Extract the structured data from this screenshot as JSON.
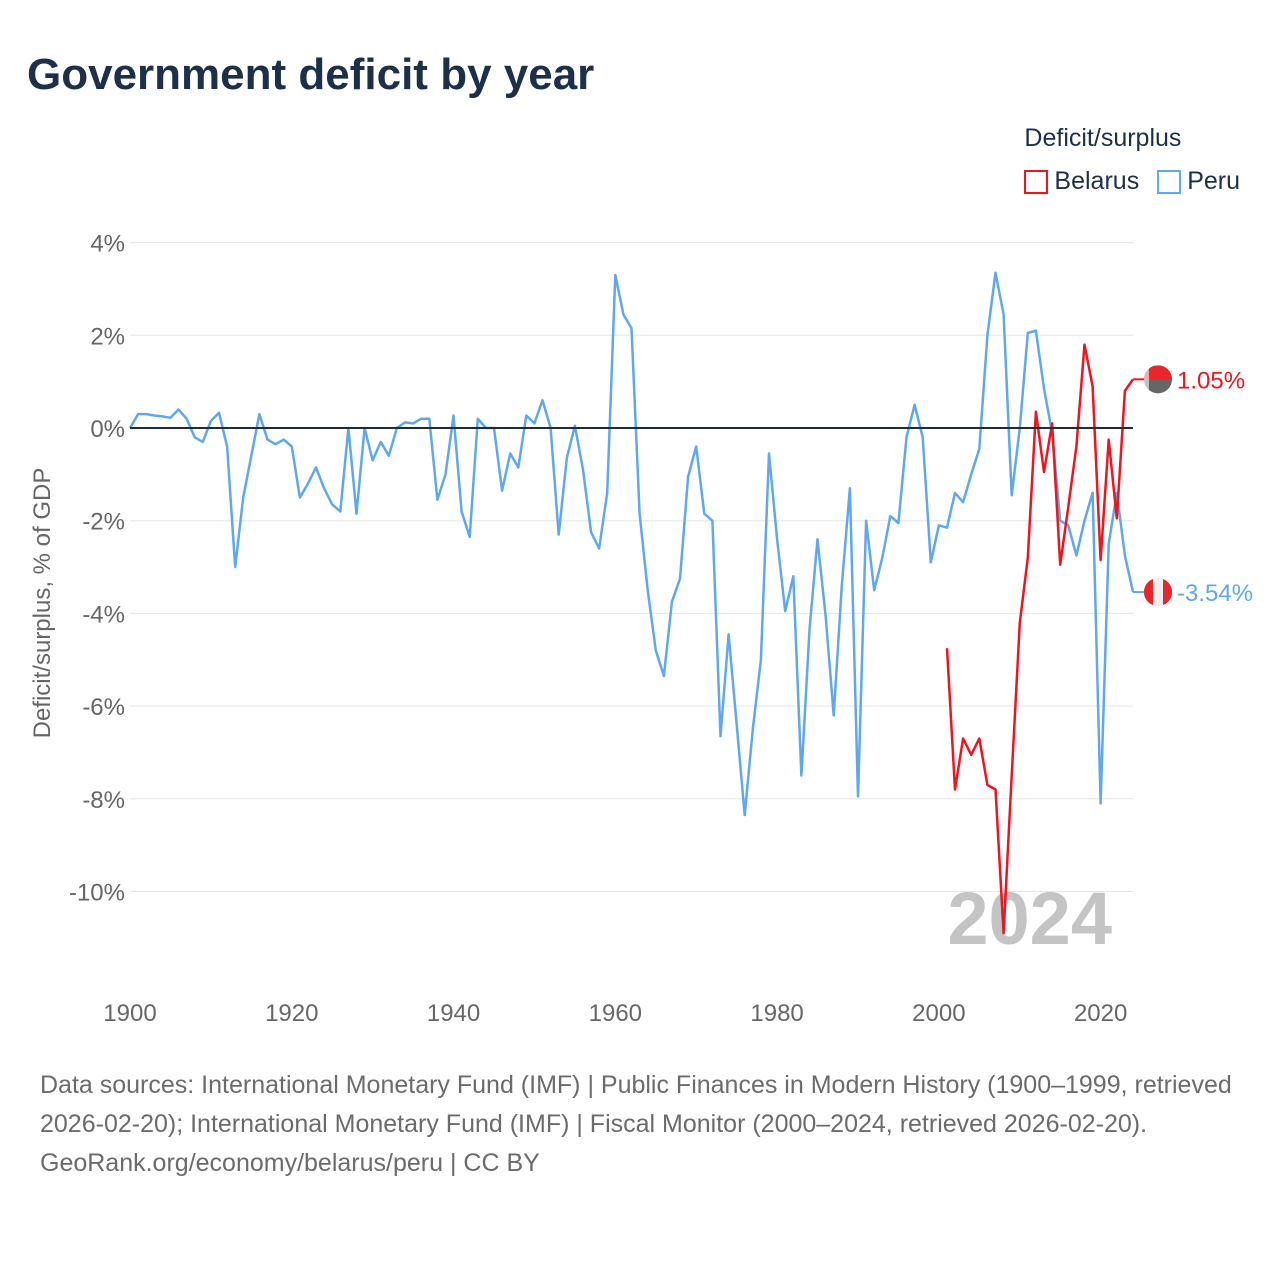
{
  "title": "Government deficit by year",
  "footer": {
    "sources": "Data sources: International Monetary Fund (IMF) | Public Finances in Modern History (1900–1999, retrieved 2026-02-20); International Monetary Fund (IMF) | Fiscal Monitor (2000–2024, retrieved 2026-02-20).",
    "credit": "GeoRank.org/economy/belarus/peru | CC BY"
  },
  "chart_data": {
    "type": "line",
    "title": "Government deficit by year",
    "xlabel": "",
    "ylabel": "Deficit/surplus, % of GDP",
    "xlim": [
      1900,
      2024
    ],
    "ylim": [
      -11.5,
      4
    ],
    "xticks": [
      1900,
      1920,
      1940,
      1960,
      1980,
      2000,
      2020
    ],
    "xtick_labels": [
      "1900",
      "1920",
      "1940",
      "1960",
      "1980",
      "2000",
      "2020"
    ],
    "yticks": [
      4,
      2,
      0,
      -2,
      -4,
      -6,
      -8,
      -10
    ],
    "ytick_labels": [
      "4%",
      "2%",
      "0%",
      "-2%",
      "-4%",
      "-6%",
      "-8%",
      "-10%"
    ],
    "legend_title": "Deficit/surplus",
    "legend_position": "top-right",
    "year_watermark": "2024",
    "series": [
      {
        "name": "Belarus",
        "color": "#f0141e",
        "end_label": "1.05%",
        "x": [
          2001,
          2002,
          2003,
          2004,
          2005,
          2006,
          2007,
          2008,
          2009,
          2010,
          2011,
          2012,
          2013,
          2014,
          2015,
          2016,
          2017,
          2018,
          2019,
          2020,
          2021,
          2022,
          2023,
          2024
        ],
        "y": [
          -4.75,
          -7.8,
          -6.7,
          -7.05,
          -6.7,
          -7.7,
          -7.8,
          -10.9,
          -7.5,
          -4.2,
          -2.8,
          0.35,
          -0.95,
          0.1,
          -2.95,
          -1.7,
          -0.4,
          1.8,
          0.9,
          -2.85,
          -0.25,
          -1.95,
          0.8,
          1.05
        ]
      },
      {
        "name": "Peru",
        "color": "#5fa8ef",
        "end_label": "-3.54%",
        "x": [
          1900,
          1901,
          1902,
          1903,
          1904,
          1905,
          1906,
          1907,
          1908,
          1909,
          1910,
          1911,
          1912,
          1913,
          1914,
          1915,
          1916,
          1917,
          1918,
          1919,
          1920,
          1921,
          1922,
          1923,
          1924,
          1925,
          1926,
          1927,
          1928,
          1929,
          1930,
          1931,
          1932,
          1933,
          1934,
          1935,
          1936,
          1937,
          1938,
          1939,
          1940,
          1941,
          1942,
          1943,
          1944,
          1945,
          1946,
          1947,
          1948,
          1949,
          1950,
          1951,
          1952,
          1953,
          1954,
          1955,
          1956,
          1957,
          1958,
          1959,
          1960,
          1961,
          1962,
          1963,
          1964,
          1965,
          1966,
          1967,
          1968,
          1969,
          1970,
          1971,
          1972,
          1973,
          1974,
          1975,
          1976,
          1977,
          1978,
          1979,
          1980,
          1981,
          1982,
          1983,
          1984,
          1985,
          1986,
          1987,
          1988,
          1989,
          1990,
          1991,
          1992,
          1993,
          1994,
          1995,
          1996,
          1997,
          1998,
          1999,
          2000,
          2001,
          2002,
          2003,
          2004,
          2005,
          2006,
          2007,
          2008,
          2009,
          2010,
          2011,
          2012,
          2013,
          2014,
          2015,
          2016,
          2017,
          2018,
          2019,
          2020,
          2021,
          2022,
          2023,
          2024
        ],
        "y": [
          0,
          0.3,
          0.3,
          0.27,
          0.25,
          0.22,
          0.4,
          0.2,
          -0.2,
          -0.3,
          0.15,
          0.33,
          -0.4,
          -3.0,
          -1.5,
          -0.6,
          0.3,
          -0.25,
          -0.35,
          -0.25,
          -0.4,
          -1.5,
          -1.2,
          -0.85,
          -1.3,
          -1.65,
          -1.8,
          0,
          -1.85,
          0,
          -0.7,
          -0.3,
          -0.6,
          0,
          0.12,
          0.1,
          0.2,
          0.2,
          -1.55,
          -1.0,
          0.27,
          -1.8,
          -2.35,
          0.2,
          0,
          0,
          -1.35,
          -0.55,
          -0.85,
          0.27,
          0.1,
          0.6,
          0,
          -2.3,
          -0.65,
          0.05,
          -0.9,
          -2.25,
          -2.6,
          -1.4,
          3.3,
          2.45,
          2.15,
          -1.85,
          -3.5,
          -4.8,
          -5.35,
          -3.75,
          -3.25,
          -1.05,
          -0.4,
          -1.85,
          -2.0,
          -6.65,
          -4.45,
          -6.4,
          -8.35,
          -6.5,
          -5.0,
          -0.55,
          -2.4,
          -3.95,
          -3.2,
          -7.5,
          -4.35,
          -2.4,
          -4.05,
          -6.2,
          -3.4,
          -1.3,
          -7.95,
          -2.0,
          -3.5,
          -2.8,
          -1.9,
          -2.05,
          -0.2,
          0.5,
          -0.2,
          -2.9,
          -2.1,
          -2.15,
          -1.4,
          -1.6,
          -1.0,
          -0.45,
          2.0,
          3.35,
          2.45,
          -1.45,
          0,
          2.05,
          2.1,
          0.85,
          -0.1,
          -2.0,
          -2.1,
          -2.75,
          -2.0,
          -1.4,
          -8.1,
          -2.5,
          -1.4,
          -2.75,
          -3.54
        ]
      }
    ]
  }
}
